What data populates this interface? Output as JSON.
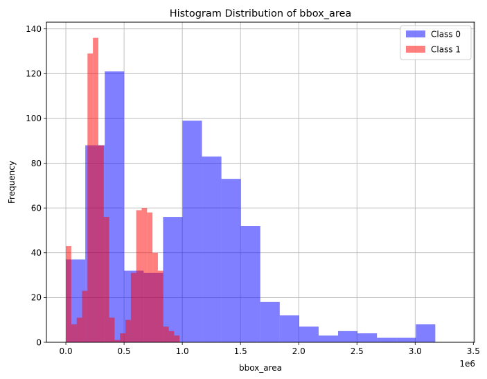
{
  "chart_data": {
    "type": "bar",
    "title": "Histogram Distribution of bbox_area",
    "xlabel": "bbox_area",
    "ylabel": "Frequency",
    "x_offset_label": "1e6",
    "xlim": [
      -0.167,
      3.51
    ],
    "ylim": [
      0,
      143
    ],
    "xticks": [
      0.0,
      0.5,
      1.0,
      1.5,
      2.0,
      2.5,
      3.0,
      3.5
    ],
    "xtick_labels": [
      "0.0",
      "0.5",
      "1.0",
      "1.5",
      "2.0",
      "2.5",
      "3.0",
      "3.5"
    ],
    "yticks": [
      0,
      20,
      40,
      60,
      80,
      100,
      120,
      140
    ],
    "ytick_labels": [
      "0",
      "20",
      "40",
      "60",
      "80",
      "100",
      "120",
      "140"
    ],
    "grid": true,
    "legend_position": "top-right",
    "series": [
      {
        "name": "Class 0",
        "color": "#0000ff",
        "opacity": 0.5,
        "bin_start": 0.0,
        "bin_width": 0.167,
        "values": [
          37,
          88,
          121,
          32,
          31,
          56,
          99,
          83,
          73,
          52,
          18,
          12,
          7,
          3,
          5,
          4,
          2,
          2,
          8
        ]
      },
      {
        "name": "Class 1",
        "color": "#ff0000",
        "opacity": 0.5,
        "bin_start": 0.0,
        "bin_width": 0.0465,
        "values": [
          43,
          8,
          11,
          23,
          129,
          136,
          88,
          56,
          11,
          1,
          4,
          10,
          31,
          59,
          60,
          58,
          40,
          32,
          7,
          5,
          3,
          0,
          0,
          0,
          0
        ]
      }
    ]
  }
}
